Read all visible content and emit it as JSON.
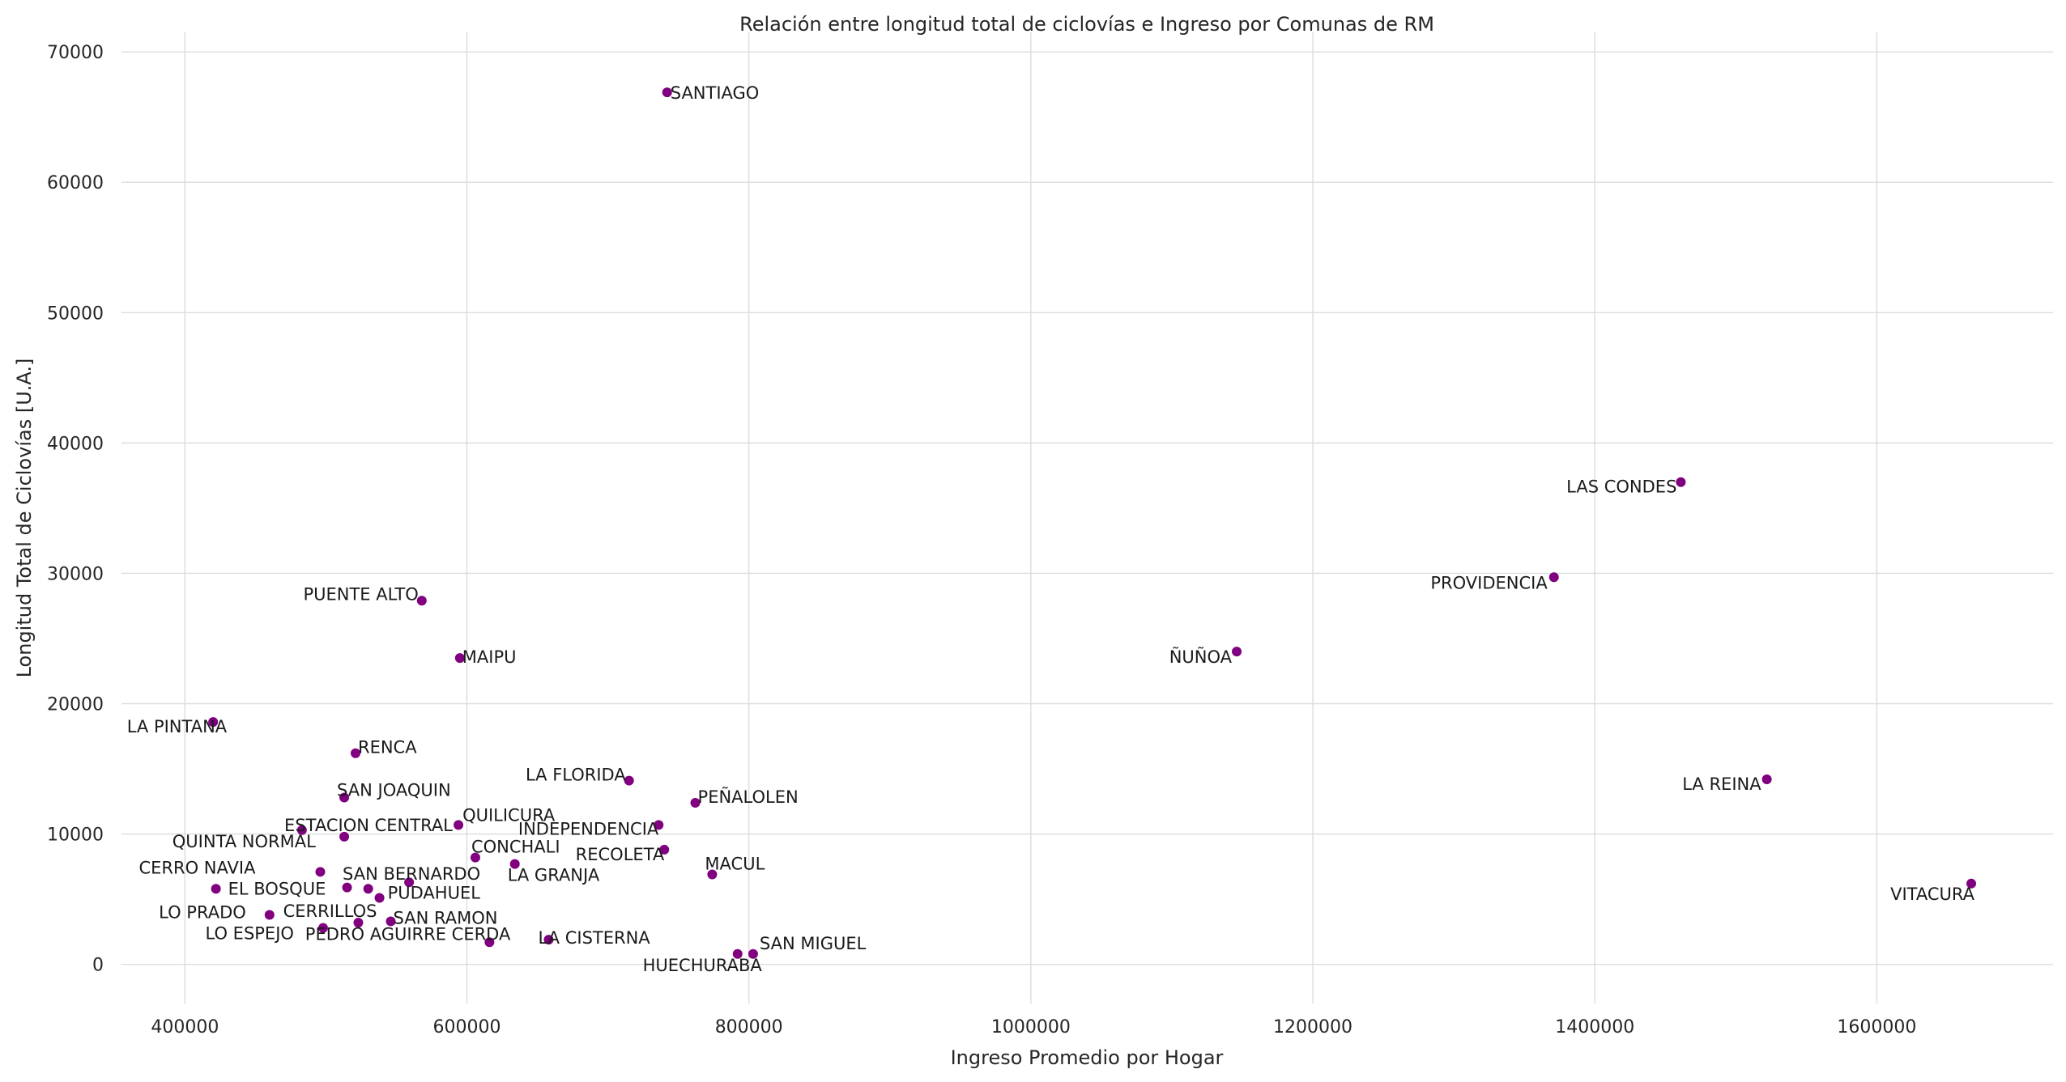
{
  "chart_data": {
    "type": "scatter",
    "title": "Relación entre longitud total de ciclovías e Ingreso por Comunas de RM",
    "xlabel": "Ingreso Promedio por Hogar",
    "ylabel": "Longitud Total de Ciclovías [U.A.]",
    "xlim": [
      355000,
      1725000
    ],
    "ylim": [
      -3000,
      71500
    ],
    "xticks": [
      400000,
      600000,
      800000,
      1000000,
      1200000,
      1400000,
      1600000
    ],
    "xtick_labels": [
      "400000",
      "600000",
      "800000",
      "1000000",
      "1200000",
      "1400000",
      "1600000"
    ],
    "yticks": [
      0,
      10000,
      20000,
      30000,
      40000,
      50000,
      60000,
      70000
    ],
    "ytick_labels": [
      "0",
      "10000",
      "20000",
      "30000",
      "40000",
      "50000",
      "60000",
      "70000"
    ],
    "grid": true,
    "point_color": "#800080",
    "points": [
      {
        "label": "SANTIAGO",
        "x": 742000,
        "y": 66900,
        "anchor": "start",
        "dx": 4,
        "dy": 1
      },
      {
        "label": "LAS CONDES",
        "x": 1461000,
        "y": 37000,
        "anchor": "end",
        "dx": -5,
        "dy": 6
      },
      {
        "label": "PROVIDENCIA",
        "x": 1371000,
        "y": 29700,
        "anchor": "end",
        "dx": -8,
        "dy": 7
      },
      {
        "label": "PUENTE ALTO",
        "x": 568000,
        "y": 27900,
        "anchor": "end",
        "dx": -4,
        "dy": -8
      },
      {
        "label": "ÑUÑOA",
        "x": 1146000,
        "y": 24000,
        "anchor": "end",
        "dx": -6,
        "dy": 7
      },
      {
        "label": "MAIPU",
        "x": 595000,
        "y": 23500,
        "anchor": "start",
        "dx": 3,
        "dy": -1
      },
      {
        "label": "LA PINTANA",
        "x": 420000,
        "y": 18600,
        "anchor": "end",
        "dx": 17,
        "dy": 6
      },
      {
        "label": "RENCA",
        "x": 521000,
        "y": 16200,
        "anchor": "start",
        "dx": 3,
        "dy": -7
      },
      {
        "label": "LA FLORIDA",
        "x": 715000,
        "y": 14100,
        "anchor": "end",
        "dx": -4,
        "dy": -7
      },
      {
        "label": "LA REINA",
        "x": 1522000,
        "y": 14200,
        "anchor": "end",
        "dx": -7,
        "dy": 6
      },
      {
        "label": "SAN JOAQUIN",
        "x": 513000,
        "y": 12800,
        "anchor": "start",
        "dx": -9,
        "dy": -9
      },
      {
        "label": "PEÑALOLEN",
        "x": 762000,
        "y": 12400,
        "anchor": "start",
        "dx": 3,
        "dy": -7
      },
      {
        "label": "QUILICURA",
        "x": 594000,
        "y": 10700,
        "anchor": "start",
        "dx": 5,
        "dy": -12
      },
      {
        "label": "ESTACION CENTRAL",
        "x": 513000,
        "y": 9800,
        "anchor": "start",
        "dx": -74,
        "dy": -14
      },
      {
        "label": "QUINTA NORMAL",
        "x": 483000,
        "y": 10300,
        "anchor": "end",
        "dx": 17,
        "dy": 14
      },
      {
        "label": "INDEPENDENCIA",
        "x": 736000,
        "y": 10700,
        "anchor": "end",
        "dx": 0,
        "dy": 5
      },
      {
        "label": "CONCHALI",
        "x": 606000,
        "y": 8200,
        "anchor": "start",
        "dx": -5,
        "dy": -13
      },
      {
        "label": "RECOLETA",
        "x": 740000,
        "y": 8800,
        "anchor": "end",
        "dx": 0,
        "dy": 6
      },
      {
        "label": "LA GRANJA",
        "x": 634000,
        "y": 7700,
        "anchor": "start",
        "dx": -9,
        "dy": 14
      },
      {
        "label": "MACUL",
        "x": 774000,
        "y": 6900,
        "anchor": "start",
        "dx": -9,
        "dy": -13
      },
      {
        "label": "CERRO NAVIA",
        "x": 496000,
        "y": 7100,
        "anchor": "end",
        "dx": -80,
        "dy": -5
      },
      {
        "label": "SAN BERNARDO",
        "x": 559000,
        "y": 6300,
        "anchor": "end",
        "dx": 88,
        "dy": -10
      },
      {
        "label": "VITACURA",
        "x": 1667000,
        "y": 6200,
        "anchor": "end",
        "dx": 4,
        "dy": 13
      },
      {
        "label": "EL BOSQUE",
        "x": 422000,
        "y": 5800,
        "anchor": "start",
        "dx": 15,
        "dy": 0
      },
      {
        "label": "",
        "x": 515000,
        "y": 5900,
        "anchor": "start",
        "dx": 0,
        "dy": 0
      },
      {
        "label": "",
        "x": 530000,
        "y": 5800,
        "anchor": "start",
        "dx": 0,
        "dy": 0
      },
      {
        "label": "PUDAHUEL",
        "x": 538000,
        "y": 5100,
        "anchor": "start",
        "dx": 10,
        "dy": -6
      },
      {
        "label": "LO PRADO",
        "x": 460000,
        "y": 3800,
        "anchor": "end",
        "dx": -29,
        "dy": -3
      },
      {
        "label": "CERRILLOS",
        "x": 523000,
        "y": 3200,
        "anchor": "end",
        "dx": 23,
        "dy": -14
      },
      {
        "label": "SAN RAMON",
        "x": 546000,
        "y": 3300,
        "anchor": "start",
        "dx": 3,
        "dy": -4
      },
      {
        "label": "LO ESPEJO",
        "x": 498000,
        "y": 2800,
        "anchor": "end",
        "dx": -36,
        "dy": 7
      },
      {
        "label": "PEDRO AGUIRRE CERDA",
        "x": 616000,
        "y": 1700,
        "anchor": "end",
        "dx": 26,
        "dy": -10
      },
      {
        "label": "LA CISTERNA",
        "x": 658000,
        "y": 1900,
        "anchor": "start",
        "dx": -13,
        "dy": -2
      },
      {
        "label": "HUECHURABA",
        "x": 792000,
        "y": 800,
        "anchor": "end",
        "dx": 30,
        "dy": 14
      },
      {
        "label": "SAN MIGUEL",
        "x": 803000,
        "y": 800,
        "anchor": "start",
        "dx": 8,
        "dy": -13
      }
    ]
  }
}
